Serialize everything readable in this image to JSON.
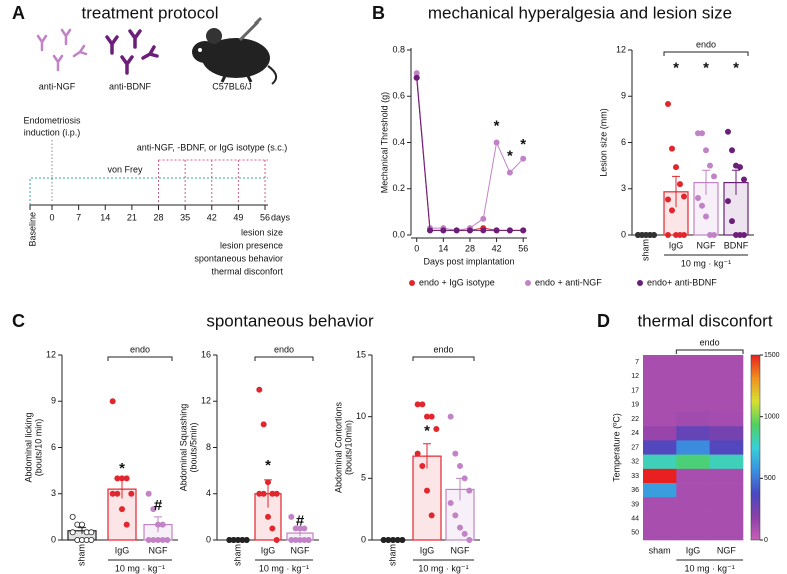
{
  "panels": [
    {
      "letter": "A",
      "title": "treatment protocol"
    },
    {
      "letter": "B",
      "title": "mechanical hyperalgesia and lesion size"
    },
    {
      "letter": "C",
      "title": "spontaneous behavior"
    },
    {
      "letter": "D",
      "title": "thermal disconfort"
    }
  ],
  "protocol": {
    "antibodies": [
      "anti-NGF",
      "anti-BDNF"
    ],
    "mouse": "C57BL6/J",
    "induction": [
      "Endometriosis",
      "induction (i.p.)"
    ],
    "treatment": "anti-NGF, -BDNF, or IgG isotype (s.c.)",
    "von_frey": "von Frey",
    "baseline": "Baseline",
    "timeline_days": [
      0,
      7,
      14,
      21,
      28,
      35,
      42,
      49,
      56
    ],
    "days_unit": "days",
    "outcomes": [
      "lesion size",
      "lesion presence",
      "spontaneous behavior",
      "thermal disconfort"
    ]
  },
  "chart_data": [
    {
      "type": "line",
      "xlabel": "Days post implantation",
      "ylabel": "Mechanical Threshold (g)",
      "x": [
        0,
        7,
        14,
        21,
        28,
        35,
        42,
        49,
        56
      ],
      "xlim": [
        -3,
        58
      ],
      "xticks": [
        0,
        14,
        28,
        42,
        56
      ],
      "ylim": [
        0,
        0.8
      ],
      "yticks": [
        {
          "value": 0,
          "label": "0.0"
        },
        {
          "value": 0.2,
          "label": "0.2"
        },
        {
          "value": 0.4,
          "label": "0.4"
        },
        {
          "value": 0.6,
          "label": "0.6"
        },
        {
          "value": 0.8,
          "label": "0.8"
        }
      ],
      "series": [
        {
          "name": "endo + IgG isotype",
          "color": "#e2262e",
          "values": [
            0.68,
            0.02,
            0.02,
            0.02,
            0.02,
            0.03,
            0.02,
            0.02,
            0.02
          ]
        },
        {
          "name": "endo + anti-NGF",
          "color": "#c183c6",
          "values": [
            0.7,
            0.03,
            0.03,
            0.02,
            0.03,
            0.07,
            0.4,
            0.27,
            0.33
          ]
        },
        {
          "name": "endo+ anti-BDNF",
          "color": "#6b1f78",
          "values": [
            0.68,
            0.02,
            0.02,
            0.02,
            0.02,
            0.02,
            0.02,
            0.02,
            0.02
          ]
        }
      ],
      "annotations": [
        {
          "text": "*",
          "x": 42,
          "y": 0.47
        },
        {
          "text": "*",
          "x": 49,
          "y": 0.34
        },
        {
          "text": "*",
          "x": 56,
          "y": 0.39
        }
      ]
    },
    {
      "type": "bar",
      "ylabel": [
        "Lesion size (mm)"
      ],
      "categories": [
        "sham",
        "IgG",
        "NGF",
        "BDNF"
      ],
      "values": [
        0,
        2.8,
        3.4,
        3.4
      ],
      "errors": [
        0,
        1.0,
        0.8,
        0.8
      ],
      "colors": [
        "#333333",
        "#e2262e",
        "#c183c6",
        "#6b1f78"
      ],
      "point_fill": [
        "#333333",
        "#e2262e",
        "#c183c6",
        "#6b1f78"
      ],
      "points": [
        [
          0,
          0,
          0,
          0,
          0,
          0,
          0,
          0,
          0,
          0
        ],
        [
          8.5,
          5.6,
          4.4,
          3.3,
          2.5,
          2.3,
          1.6,
          0,
          0,
          0,
          0
        ],
        [
          6.6,
          6.6,
          5.5,
          4.5,
          3.8,
          2.4,
          1.9,
          1.2,
          0,
          0
        ],
        [
          6.7,
          5.5,
          4.5,
          4.4,
          3.6,
          2.2,
          0.9,
          0,
          0,
          0
        ]
      ],
      "ylim": [
        0,
        12
      ],
      "yticks": [
        0,
        3,
        6,
        9,
        12
      ],
      "group_label": "endo",
      "dose_label": "10 mg · kg⁻¹",
      "annotations": [
        {
          "text": "*",
          "category_index": 1,
          "y": 10.8
        },
        {
          "text": "*",
          "category_index": 2,
          "y": 10.8
        },
        {
          "text": "*",
          "category_index": 3,
          "y": 10.8
        }
      ]
    },
    {
      "type": "bar",
      "ylabel": [
        "Abdominal licking",
        "(bouts/10 min)"
      ],
      "categories": [
        "sham",
        "IgG",
        "NGF"
      ],
      "values": [
        0.6,
        3.3,
        1.0
      ],
      "errors": [
        0.2,
        0.6,
        0.5
      ],
      "colors": [
        "#222222",
        "#e2262e",
        "#c183c6"
      ],
      "point_fill": [
        "#ffffff",
        "#e2262e",
        "#c183c6"
      ],
      "points": [
        [
          1.5,
          1,
          1,
          0.5,
          0.5,
          0.5,
          0,
          0,
          0,
          0
        ],
        [
          9,
          4,
          4,
          4,
          3,
          3,
          3,
          2,
          1
        ],
        [
          3,
          2,
          1,
          1,
          0,
          0,
          0,
          0,
          0
        ]
      ],
      "ylim": [
        0,
        12
      ],
      "yticks": [
        0,
        3,
        6,
        9,
        12
      ],
      "group_label": "endo",
      "dose_label": "10 mg · kg⁻¹",
      "annotations": [
        {
          "text": "*",
          "category_index": 1,
          "y": 4.6
        },
        {
          "text": "#",
          "category_index": 2,
          "y": 2.2
        }
      ]
    },
    {
      "type": "bar",
      "ylabel": [
        "Abdominal Squashing",
        "(bouts/5min)"
      ],
      "categories": [
        "sham",
        "IgG",
        "NGF"
      ],
      "values": [
        0,
        4.0,
        0.6
      ],
      "errors": [
        0,
        1.2,
        0.25
      ],
      "colors": [
        "#222222",
        "#e2262e",
        "#c183c6"
      ],
      "point_fill": [
        "#222222",
        "#e2262e",
        "#c183c6"
      ],
      "points": [
        [
          0,
          0,
          0,
          0,
          0,
          0,
          0,
          0,
          0,
          0
        ],
        [
          13,
          10,
          5,
          4,
          4,
          4,
          4,
          2,
          1,
          0
        ],
        [
          2,
          1,
          1,
          1,
          0,
          0,
          0,
          0,
          0,
          0
        ]
      ],
      "ylim": [
        0,
        16
      ],
      "yticks": [
        0,
        4,
        8,
        12,
        16
      ],
      "group_label": "endo",
      "dose_label": "10 mg · kg⁻¹",
      "annotations": [
        {
          "text": "*",
          "category_index": 1,
          "y": 6.4
        },
        {
          "text": "#",
          "category_index": 2,
          "y": 1.6
        }
      ]
    },
    {
      "type": "bar",
      "ylabel": [
        "Abdominal Contortions",
        "(bouts/10min)"
      ],
      "categories": [
        "sham",
        "IgG",
        "NGF"
      ],
      "values": [
        0,
        6.8,
        4.1
      ],
      "errors": [
        0,
        1.0,
        0.9
      ],
      "colors": [
        "#222222",
        "#e2262e",
        "#c183c6"
      ],
      "point_fill": [
        "#222222",
        "#e2262e",
        "#c183c6"
      ],
      "points": [
        [
          0,
          0,
          0,
          0,
          0,
          0,
          0,
          0,
          0,
          0
        ],
        [
          11,
          11,
          10,
          10,
          9,
          7,
          6,
          4,
          2
        ],
        [
          10,
          7,
          6,
          5,
          4,
          3,
          2,
          1,
          0.5,
          0
        ]
      ],
      "ylim": [
        0,
        15
      ],
      "yticks": [
        0,
        5,
        10,
        15
      ],
      "group_label": "endo",
      "dose_label": "10 mg · kg⁻¹",
      "annotations": [
        {
          "text": "*",
          "category_index": 1,
          "y": 8.8
        }
      ]
    },
    {
      "type": "heatmap",
      "ylabel": "Temperature (ºC)",
      "columns": [
        "sham",
        "IgG",
        "NGF"
      ],
      "rows": [
        7,
        12,
        17,
        19,
        22,
        24,
        27,
        32,
        33,
        36,
        39,
        44,
        50
      ],
      "values": [
        [
          100,
          100,
          100
        ],
        [
          100,
          100,
          100
        ],
        [
          100,
          100,
          100
        ],
        [
          100,
          100,
          100
        ],
        [
          100,
          120,
          110
        ],
        [
          150,
          300,
          250
        ],
        [
          350,
          550,
          350
        ],
        [
          800,
          900,
          800
        ],
        [
          1500,
          100,
          100
        ],
        [
          600,
          100,
          100
        ],
        [
          100,
          100,
          100
        ],
        [
          100,
          100,
          100
        ],
        [
          100,
          100,
          100
        ]
      ],
      "zlim": [
        0,
        1500
      ],
      "zticks": [
        0,
        500,
        1000,
        1500
      ],
      "colorscale": [
        "#c95fb8",
        "#8a3fa8",
        "#4a48c0",
        "#3a90e0",
        "#38d0d8",
        "#50d060",
        "#d8e030",
        "#f09020",
        "#e82020"
      ],
      "group_label": "endo",
      "dose_label": "10 mg · kg⁻¹"
    }
  ]
}
